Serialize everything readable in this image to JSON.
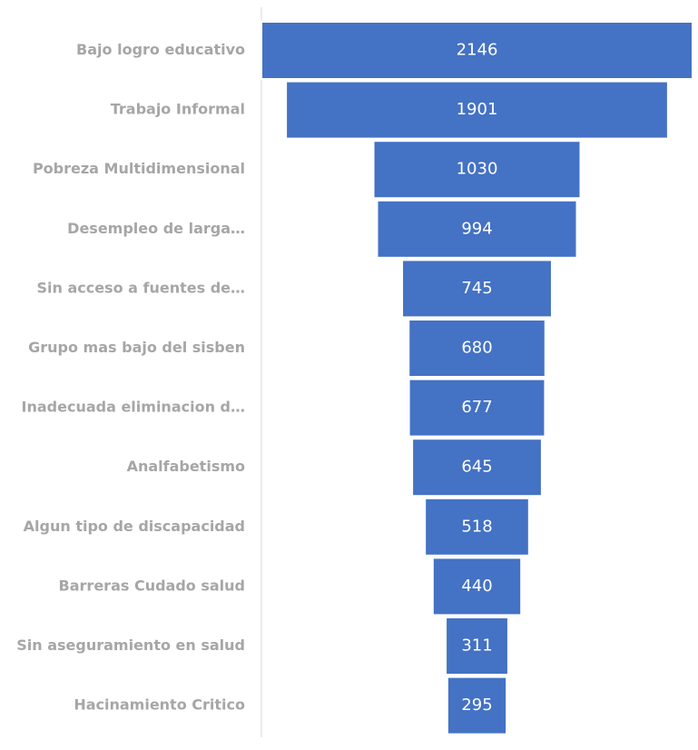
{
  "chart_data": {
    "type": "funnel",
    "categories": [
      "Bajo logro educativo",
      "Trabajo Informal",
      "Pobreza Multidimensional",
      "Desempleo de larga…",
      "Sin acceso a fuentes de…",
      "Grupo mas bajo del sisben",
      "Inadecuada eliminacion d…",
      "Analfabetismo",
      "Algun tipo de discapacidad",
      "Barreras Cudado salud",
      "Sin aseguramiento en salud",
      "Hacinamiento Critico"
    ],
    "values": [
      2146,
      1901,
      1030,
      994,
      745,
      680,
      677,
      645,
      518,
      440,
      311,
      295
    ],
    "color": "#4472c4"
  }
}
